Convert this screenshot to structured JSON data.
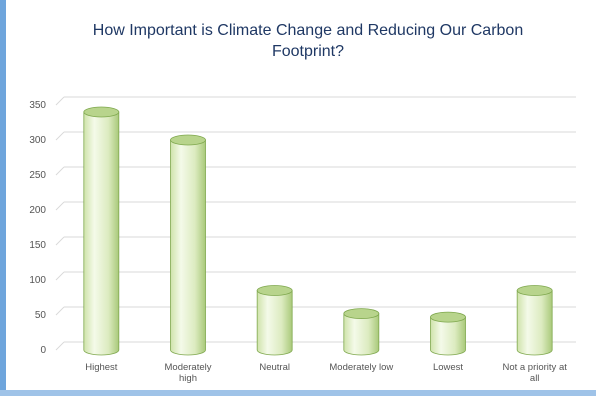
{
  "chart_data": {
    "type": "bar",
    "title": "How Important is Climate Change and Reducing Our Carbon Footprint?",
    "title_lines": [
      "How Important is Climate Change and Reducing Our Carbon",
      "Footprint?"
    ],
    "categories": [
      "Highest",
      "Moderately high",
      "Neutral",
      "Moderately low",
      "Lowest",
      "Not a priority at all"
    ],
    "category_lines": [
      [
        "Highest"
      ],
      [
        "Moderately",
        "high"
      ],
      [
        "Neutral"
      ],
      [
        "Moderately low"
      ],
      [
        "Lowest"
      ],
      [
        "Not a priority at",
        "all"
      ]
    ],
    "values": [
      340,
      300,
      85,
      52,
      47,
      85
    ],
    "ylim": [
      0,
      350
    ],
    "yticks": [
      0,
      50,
      100,
      150,
      200,
      250,
      300,
      350
    ],
    "xlabel": "",
    "ylabel": "",
    "grid": true,
    "legend": "none",
    "bar_style": "3d-cylinder",
    "colors": {
      "bar_light": "#f4fae9",
      "bar_mid": "#cfe3aa",
      "bar_dark": "#7fa84e",
      "bar_top": "#b8d48c",
      "grid": "#d9d9d9",
      "title": "#1f3864",
      "frame": "#6ea5dc"
    }
  }
}
